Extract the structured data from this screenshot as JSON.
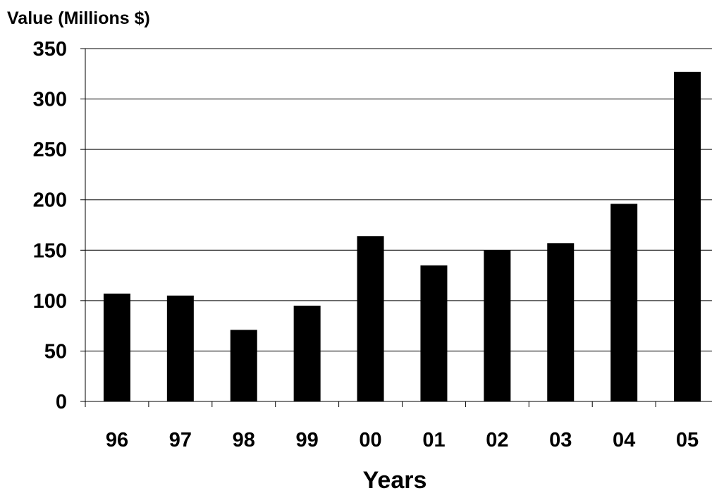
{
  "chart_data": {
    "type": "bar",
    "title": "",
    "xlabel": "Years",
    "ylabel": "Value (Millions $)",
    "categories": [
      "96",
      "97",
      "98",
      "99",
      "00",
      "01",
      "02",
      "03",
      "04",
      "05"
    ],
    "values": [
      107,
      105,
      71,
      95,
      164,
      135,
      150,
      157,
      196,
      327
    ],
    "ylim": [
      0,
      350
    ],
    "yticks": [
      0,
      50,
      100,
      150,
      200,
      250,
      300,
      350
    ],
    "grid": true,
    "legend": "none",
    "colors": {
      "bar": "#000000",
      "grid": "#000000",
      "background": "#ffffff"
    }
  }
}
